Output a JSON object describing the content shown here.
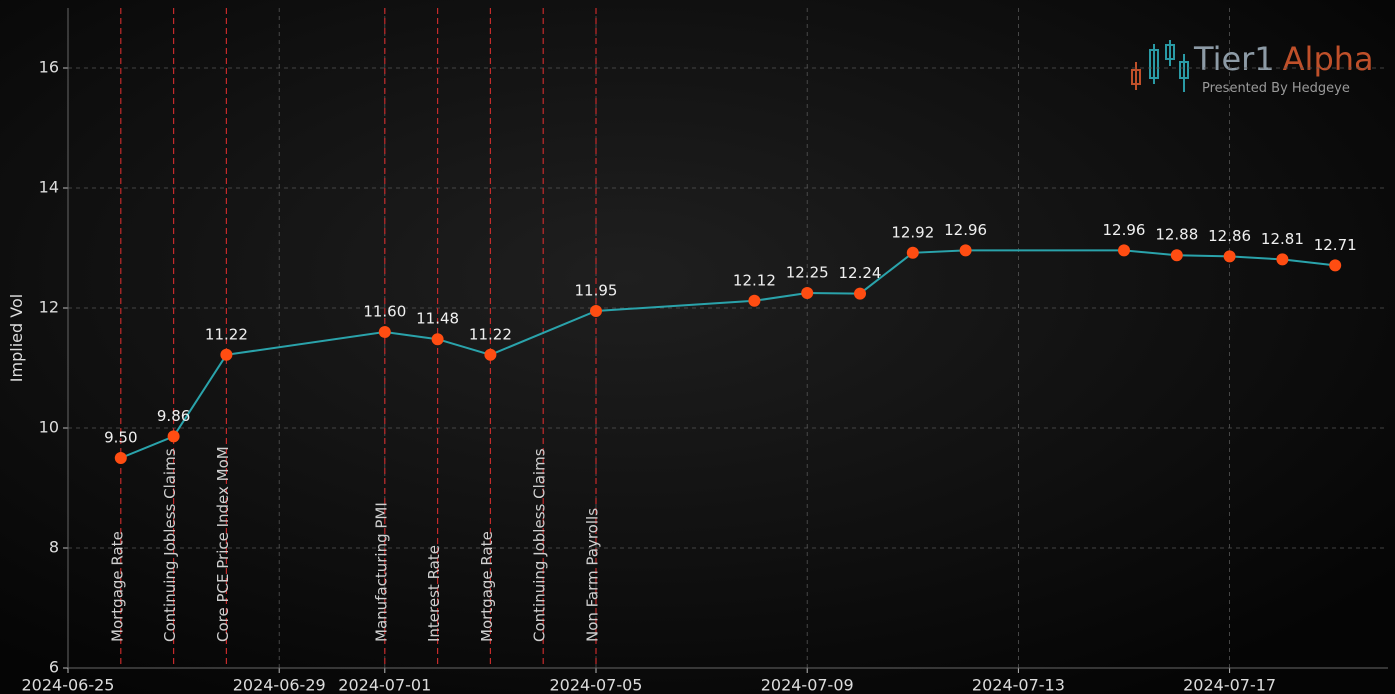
{
  "chart_data": {
    "type": "line",
    "ylabel": "Implied Vol",
    "x": [
      "2024-06-26",
      "2024-06-27",
      "2024-06-28",
      "2024-07-01",
      "2024-07-02",
      "2024-07-03",
      "2024-07-05",
      "2024-07-08",
      "2024-07-09",
      "2024-07-10",
      "2024-07-11",
      "2024-07-12",
      "2024-07-15",
      "2024-07-16",
      "2024-07-17",
      "2024-07-18",
      "2024-07-19"
    ],
    "values": [
      9.5,
      9.86,
      11.22,
      11.6,
      11.48,
      11.22,
      11.95,
      12.12,
      12.25,
      12.24,
      12.92,
      12.96,
      12.96,
      12.88,
      12.86,
      12.81,
      12.71
    ],
    "value_labels": [
      "9.50",
      "9.86",
      "11.22",
      "11.60",
      "11.48",
      "11.22",
      "11.95",
      "12.12",
      "12.25",
      "12.24",
      "12.92",
      "12.96",
      "12.96",
      "12.88",
      "12.86",
      "12.81",
      "12.71"
    ],
    "line_color": "#2aa3ab",
    "marker_color": "#ff4d12",
    "event_color": "#c42a2a",
    "events": [
      {
        "x": "2024-06-26",
        "label": "Mortgage Rate"
      },
      {
        "x": "2024-06-27",
        "label": "Continuing Jobless Claims"
      },
      {
        "x": "2024-06-28",
        "label": "Core PCE Price Index MoM"
      },
      {
        "x": "2024-07-01",
        "label": "Manufacturing PMI"
      },
      {
        "x": "2024-07-02",
        "label": "Interest Rate"
      },
      {
        "x": "2024-07-03",
        "label": "Mortgage Rate"
      },
      {
        "x": "2024-07-04",
        "label": "Continuing Jobless Claims"
      },
      {
        "x": "2024-07-05",
        "label": "Non Farm Payrolls"
      }
    ],
    "xlim": [
      "2024-06-25",
      "2024-07-20"
    ],
    "xticks": [
      "2024-06-25",
      "2024-06-29",
      "2024-07-01",
      "2024-07-05",
      "2024-07-09",
      "2024-07-13",
      "2024-07-17"
    ],
    "ylim": [
      6,
      17
    ],
    "yticks": [
      6,
      8,
      10,
      12,
      14,
      16
    ],
    "grid": true
  },
  "logo": {
    "name": "Tier1",
    "accent": "Alpha",
    "tagline": "Presented By Hedgeye"
  }
}
